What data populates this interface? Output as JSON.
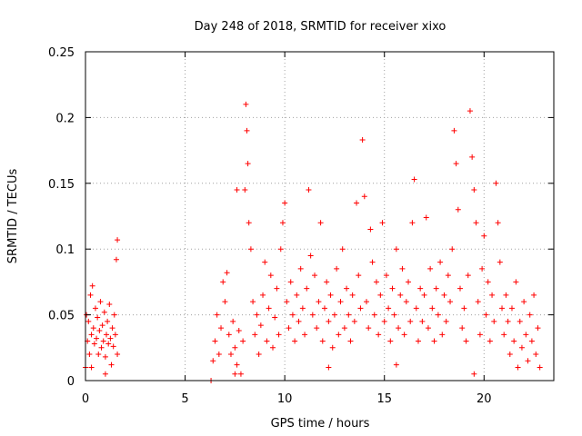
{
  "chart_data": {
    "type": "scatter",
    "title": "Day 248 of 2018, SRMTID for receiver xixo",
    "xlabel": "GPS time / hours",
    "ylabel": "SRMTID / TECUs",
    "xlim": [
      0,
      23.5
    ],
    "ylim": [
      0,
      0.25
    ],
    "xticks": [
      0,
      5,
      10,
      15,
      20
    ],
    "xtick_labels": [
      "0",
      "5",
      "10",
      "15",
      "20"
    ],
    "yticks": [
      0,
      0.05,
      0.1,
      0.15,
      0.2,
      0.25
    ],
    "ytick_labels": [
      "0",
      "0.05",
      "0.1",
      "0.15",
      "0.2",
      "0.25"
    ],
    "grid": true,
    "marker": "+",
    "color": "#ff0000",
    "series": [
      {
        "name": "SRMTID",
        "points": [
          [
            0.0,
            0.01
          ],
          [
            0.05,
            0.05
          ],
          [
            0.1,
            0.03
          ],
          [
            0.15,
            0.045
          ],
          [
            0.2,
            0.02
          ],
          [
            0.25,
            0.065
          ],
          [
            0.3,
            0.035
          ],
          [
            0.35,
            0.072
          ],
          [
            0.4,
            0.04
          ],
          [
            0.45,
            0.028
          ],
          [
            0.5,
            0.055
          ],
          [
            0.55,
            0.032
          ],
          [
            0.6,
            0.048
          ],
          [
            0.65,
            0.02
          ],
          [
            0.7,
            0.038
          ],
          [
            0.75,
            0.06
          ],
          [
            0.8,
            0.025
          ],
          [
            0.85,
            0.042
          ],
          [
            0.9,
            0.03
          ],
          [
            0.95,
            0.052
          ],
          [
            1.0,
            0.018
          ],
          [
            1.05,
            0.035
          ],
          [
            1.1,
            0.045
          ],
          [
            1.15,
            0.028
          ],
          [
            1.2,
            0.058
          ],
          [
            1.25,
            0.032
          ],
          [
            1.3,
            0.012
          ],
          [
            1.35,
            0.04
          ],
          [
            1.4,
            0.026
          ],
          [
            1.45,
            0.05
          ],
          [
            1.5,
            0.035
          ],
          [
            1.55,
            0.092
          ],
          [
            1.6,
            0.107
          ],
          [
            1.6,
            0.02
          ],
          [
            0.3,
            0.01
          ],
          [
            1.0,
            0.005
          ],
          [
            6.3,
            0.0
          ],
          [
            6.4,
            0.015
          ],
          [
            6.5,
            0.03
          ],
          [
            6.6,
            0.05
          ],
          [
            6.7,
            0.02
          ],
          [
            6.8,
            0.04
          ],
          [
            6.9,
            0.075
          ],
          [
            7.0,
            0.06
          ],
          [
            7.1,
            0.082
          ],
          [
            7.2,
            0.035
          ],
          [
            7.3,
            0.02
          ],
          [
            7.4,
            0.045
          ],
          [
            7.5,
            0.025
          ],
          [
            7.6,
            0.012
          ],
          [
            7.7,
            0.038
          ],
          [
            7.8,
            0.005
          ],
          [
            7.9,
            0.03
          ],
          [
            8.0,
            0.145
          ],
          [
            8.05,
            0.21
          ],
          [
            8.1,
            0.19
          ],
          [
            8.15,
            0.165
          ],
          [
            8.2,
            0.12
          ],
          [
            8.3,
            0.1
          ],
          [
            8.4,
            0.06
          ],
          [
            8.5,
            0.035
          ],
          [
            8.6,
            0.05
          ],
          [
            8.7,
            0.02
          ],
          [
            8.8,
            0.042
          ],
          [
            8.9,
            0.065
          ],
          [
            9.0,
            0.09
          ],
          [
            9.1,
            0.03
          ],
          [
            9.2,
            0.055
          ],
          [
            9.3,
            0.08
          ],
          [
            9.4,
            0.025
          ],
          [
            9.5,
            0.048
          ],
          [
            9.6,
            0.07
          ],
          [
            9.7,
            0.035
          ],
          [
            9.8,
            0.1
          ],
          [
            9.9,
            0.12
          ],
          [
            10.0,
            0.135
          ],
          [
            7.6,
            0.145
          ],
          [
            7.5,
            0.005
          ],
          [
            10.1,
            0.06
          ],
          [
            10.2,
            0.04
          ],
          [
            10.3,
            0.075
          ],
          [
            10.4,
            0.05
          ],
          [
            10.5,
            0.03
          ],
          [
            10.6,
            0.065
          ],
          [
            10.7,
            0.045
          ],
          [
            10.8,
            0.085
          ],
          [
            10.9,
            0.055
          ],
          [
            11.0,
            0.035
          ],
          [
            11.1,
            0.07
          ],
          [
            11.2,
            0.145
          ],
          [
            11.3,
            0.095
          ],
          [
            11.4,
            0.05
          ],
          [
            11.5,
            0.08
          ],
          [
            11.6,
            0.04
          ],
          [
            11.7,
            0.06
          ],
          [
            11.8,
            0.12
          ],
          [
            11.9,
            0.03
          ],
          [
            12.0,
            0.055
          ],
          [
            12.1,
            0.075
          ],
          [
            12.2,
            0.045
          ],
          [
            12.3,
            0.065
          ],
          [
            12.4,
            0.025
          ],
          [
            12.5,
            0.05
          ],
          [
            12.6,
            0.085
          ],
          [
            12.7,
            0.035
          ],
          [
            12.8,
            0.06
          ],
          [
            12.9,
            0.1
          ],
          [
            13.0,
            0.04
          ],
          [
            13.1,
            0.07
          ],
          [
            13.2,
            0.05
          ],
          [
            13.3,
            0.03
          ],
          [
            13.4,
            0.065
          ],
          [
            13.5,
            0.045
          ],
          [
            13.6,
            0.135
          ],
          [
            13.7,
            0.08
          ],
          [
            13.8,
            0.055
          ],
          [
            13.9,
            0.183
          ],
          [
            14.0,
            0.14
          ],
          [
            12.2,
            0.01
          ],
          [
            14.1,
            0.06
          ],
          [
            14.2,
            0.04
          ],
          [
            14.3,
            0.115
          ],
          [
            14.4,
            0.09
          ],
          [
            14.5,
            0.05
          ],
          [
            14.6,
            0.075
          ],
          [
            14.7,
            0.035
          ],
          [
            14.8,
            0.065
          ],
          [
            14.9,
            0.12
          ],
          [
            15.0,
            0.045
          ],
          [
            15.1,
            0.08
          ],
          [
            15.2,
            0.055
          ],
          [
            15.3,
            0.03
          ],
          [
            15.4,
            0.07
          ],
          [
            15.5,
            0.05
          ],
          [
            15.6,
            0.1
          ],
          [
            15.7,
            0.04
          ],
          [
            15.8,
            0.065
          ],
          [
            15.9,
            0.085
          ],
          [
            16.0,
            0.035
          ],
          [
            16.1,
            0.06
          ],
          [
            16.2,
            0.075
          ],
          [
            16.3,
            0.045
          ],
          [
            16.4,
            0.12
          ],
          [
            16.5,
            0.153
          ],
          [
            16.6,
            0.055
          ],
          [
            16.7,
            0.03
          ],
          [
            16.8,
            0.07
          ],
          [
            16.9,
            0.045
          ],
          [
            17.0,
            0.065
          ],
          [
            17.1,
            0.124
          ],
          [
            17.2,
            0.04
          ],
          [
            17.3,
            0.085
          ],
          [
            17.4,
            0.055
          ],
          [
            17.5,
            0.03
          ],
          [
            17.6,
            0.07
          ],
          [
            17.7,
            0.05
          ],
          [
            17.8,
            0.09
          ],
          [
            17.9,
            0.035
          ],
          [
            18.0,
            0.065
          ],
          [
            15.6,
            0.012
          ],
          [
            18.1,
            0.045
          ],
          [
            18.2,
            0.08
          ],
          [
            18.3,
            0.06
          ],
          [
            18.4,
            0.1
          ],
          [
            18.5,
            0.19
          ],
          [
            18.6,
            0.165
          ],
          [
            18.7,
            0.13
          ],
          [
            18.8,
            0.07
          ],
          [
            18.9,
            0.04
          ],
          [
            19.0,
            0.055
          ],
          [
            19.1,
            0.03
          ],
          [
            19.2,
            0.08
          ],
          [
            19.3,
            0.205
          ],
          [
            19.4,
            0.17
          ],
          [
            19.5,
            0.145
          ],
          [
            19.6,
            0.12
          ],
          [
            19.7,
            0.06
          ],
          [
            19.8,
            0.035
          ],
          [
            19.9,
            0.085
          ],
          [
            20.0,
            0.11
          ],
          [
            20.1,
            0.05
          ],
          [
            20.2,
            0.075
          ],
          [
            20.3,
            0.03
          ],
          [
            20.4,
            0.065
          ],
          [
            20.5,
            0.045
          ],
          [
            20.6,
            0.15
          ],
          [
            20.7,
            0.12
          ],
          [
            20.8,
            0.09
          ],
          [
            20.9,
            0.055
          ],
          [
            21.0,
            0.035
          ],
          [
            21.1,
            0.065
          ],
          [
            21.2,
            0.045
          ],
          [
            21.3,
            0.02
          ],
          [
            21.4,
            0.055
          ],
          [
            21.5,
            0.03
          ],
          [
            21.6,
            0.075
          ],
          [
            21.7,
            0.01
          ],
          [
            21.8,
            0.045
          ],
          [
            21.9,
            0.025
          ],
          [
            22.0,
            0.06
          ],
          [
            22.1,
            0.035
          ],
          [
            22.2,
            0.015
          ],
          [
            22.3,
            0.05
          ],
          [
            22.4,
            0.03
          ],
          [
            22.5,
            0.065
          ],
          [
            22.6,
            0.02
          ],
          [
            22.7,
            0.04
          ],
          [
            22.8,
            0.01
          ],
          [
            19.5,
            0.005
          ]
        ]
      }
    ]
  }
}
